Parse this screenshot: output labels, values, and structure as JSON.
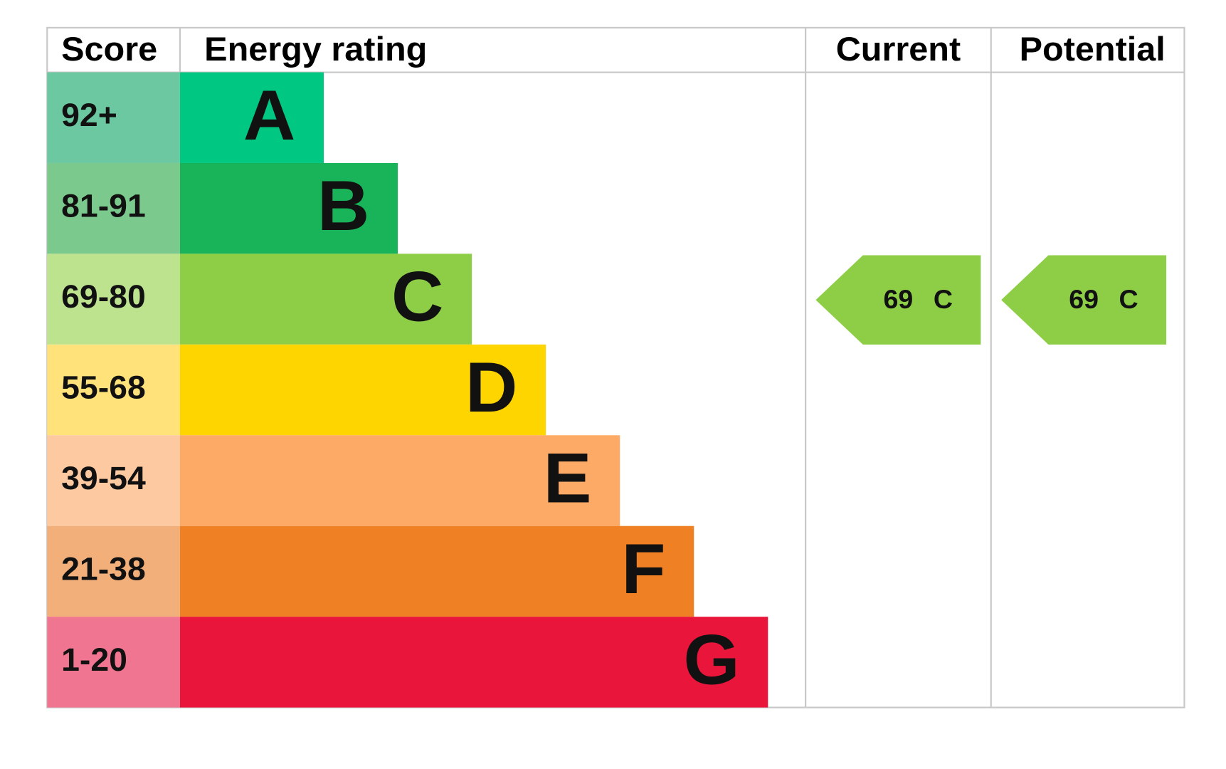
{
  "header": {
    "score": "Score",
    "rating": "Energy rating",
    "current": "Current",
    "potential": "Potential"
  },
  "bands": [
    {
      "score": "92+",
      "letter": "A",
      "color": "#00c781",
      "score_color": "#6cc8a0"
    },
    {
      "score": "81-91",
      "letter": "B",
      "color": "#19b459",
      "score_color": "#7cc98e"
    },
    {
      "score": "69-80",
      "letter": "C",
      "color": "#8dce46",
      "score_color": "#bde38f"
    },
    {
      "score": "55-68",
      "letter": "D",
      "color": "#ffd500",
      "score_color": "#ffe27a"
    },
    {
      "score": "39-54",
      "letter": "E",
      "color": "#fcaa65",
      "score_color": "#fcc9a0"
    },
    {
      "score": "21-38",
      "letter": "F",
      "color": "#ef8023",
      "score_color": "#f2af7a"
    },
    {
      "score": "1-20",
      "letter": "G",
      "color": "#e9153b",
      "score_color": "#ef7590"
    }
  ],
  "current": {
    "value": 69,
    "letter": "C"
  },
  "potential": {
    "value": 69,
    "letter": "C"
  }
}
